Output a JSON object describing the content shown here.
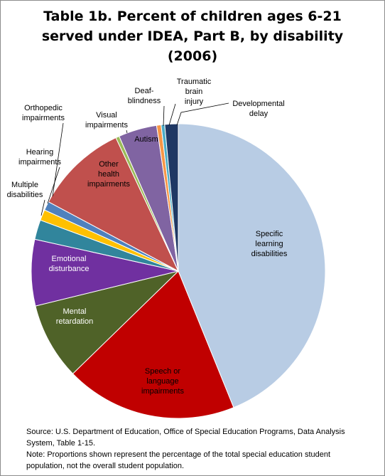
{
  "title_lines": [
    "Table 1b. Percent of children ages 6-21",
    "served under IDEA, Part B, by disability",
    "(2006)"
  ],
  "chart_data": {
    "type": "pie",
    "title": "Table 1b. Percent of children ages 6-21 served under IDEA, Part B, by disability (2006)",
    "start_angle_deg": 0,
    "direction": "clockwise",
    "slices": [
      {
        "label": "Specific learning disabilities",
        "value": 44.6,
        "color": "#b8cce4"
      },
      {
        "label": "Speech or language impairments",
        "value": 19.2,
        "color": "#c00000"
      },
      {
        "label": "Mental retardation",
        "value": 8.6,
        "color": "#4f6228"
      },
      {
        "label": "Emotional disturbance",
        "value": 7.4,
        "color": "#7030a0"
      },
      {
        "label": "Multiple disabilities",
        "value": 2.2,
        "color": "#31859c"
      },
      {
        "label": "Hearing impairments",
        "value": 1.2,
        "color": "#ffc000"
      },
      {
        "label": "Orthopedic impairments",
        "value": 1.0,
        "color": "#4f81bd"
      },
      {
        "label": "Other health impairments",
        "value": 10.4,
        "color": "#c0504d"
      },
      {
        "label": "Visual impairments",
        "value": 0.4,
        "color": "#9bbb59"
      },
      {
        "label": "Autism",
        "value": 4.3,
        "color": "#8064a2"
      },
      {
        "label": "Deaf-blindness",
        "value": 0.5,
        "color": "#f79646"
      },
      {
        "label": "Traumatic brain injury",
        "value": 0.4,
        "color": "#4bacc6"
      },
      {
        "label": "Developmental delay",
        "value": 1.5,
        "color": "#1f3864"
      }
    ],
    "labels": [
      {
        "lines": [
          "Specific",
          "learning",
          "disabilities"
        ],
        "color": "#000000"
      },
      {
        "lines": [
          "Speech or",
          "language",
          "impairments"
        ],
        "color": "#000000"
      },
      {
        "lines": [
          "Mental",
          "retardation"
        ],
        "color": "#ffffff"
      },
      {
        "lines": [
          "Emotional",
          "disturbance"
        ],
        "color": "#ffffff"
      },
      {
        "lines": [
          "Multiple",
          "disabilities"
        ],
        "color": "#000000"
      },
      {
        "lines": [
          "Hearing",
          "impairments"
        ],
        "color": "#000000"
      },
      {
        "lines": [
          "Orthopedic",
          "impairments"
        ],
        "color": "#000000"
      },
      {
        "lines": [
          "Other",
          "health",
          "impairments"
        ],
        "color": "#000000"
      },
      {
        "lines": [
          "Visual",
          "impairments"
        ],
        "color": "#000000"
      },
      {
        "lines": [
          "Autism"
        ],
        "color": "#000000"
      },
      {
        "lines": [
          "Deaf-",
          "blindness"
        ],
        "color": "#000000"
      },
      {
        "lines": [
          "Traumatic",
          "brain",
          "injury"
        ],
        "color": "#000000"
      },
      {
        "lines": [
          "Developmental",
          "delay"
        ],
        "color": "#000000"
      }
    ],
    "legend": "none"
  },
  "notes": {
    "source": "Source: U.S. Department of Education, Office of Special Education Programs, Data Analysis System, Table 1-15.",
    "note": "Note: Proportions shown represent the percentage of the total special education student population, not the overall student population."
  }
}
